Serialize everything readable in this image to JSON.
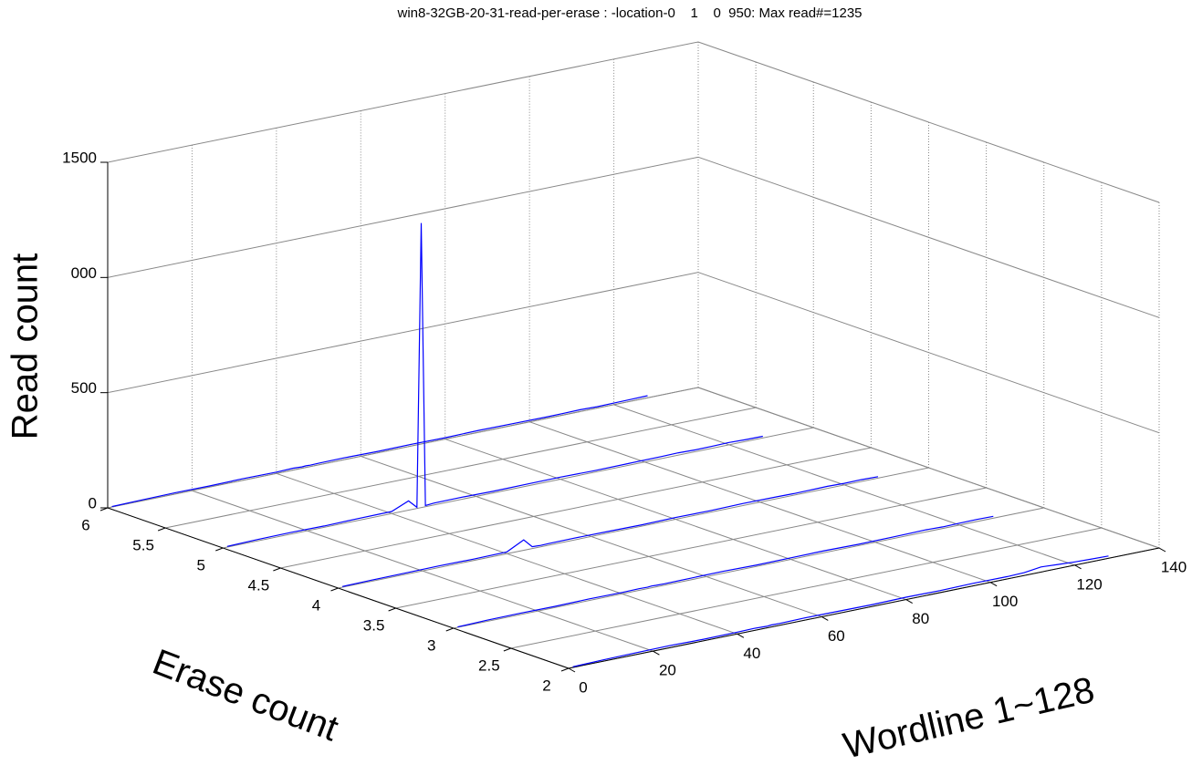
{
  "chart_data": {
    "type": "line3d",
    "title": "win8-32GB-20-31-read-per-erase : -location-0    1    0  950: Max read#=1235",
    "xlabel": "Wordline 1~128",
    "ylabel": "Erase count",
    "zlabel": "Read count",
    "x": [
      1,
      8,
      16,
      24,
      32,
      40,
      44,
      46,
      47,
      48,
      50,
      56,
      64,
      72,
      80,
      88,
      96,
      104,
      108,
      112,
      116,
      120,
      124,
      128
    ],
    "series": [
      {
        "y": 6,
        "color": "#0000ff",
        "values": [
          2,
          4,
          6,
          5,
          7,
          6,
          8,
          6,
          7,
          6,
          7,
          8,
          6,
          7,
          6,
          8,
          7,
          6,
          7,
          8,
          6,
          7,
          8,
          9
        ]
      },
      {
        "y": 5,
        "color": "#0000ff",
        "values": [
          3,
          6,
          7,
          6,
          8,
          9,
          40,
          5,
          1235,
          5,
          8,
          9,
          7,
          8,
          9,
          7,
          8,
          9,
          10,
          8,
          9,
          10,
          8,
          7
        ]
      },
      {
        "y": 4,
        "color": "#0000ff",
        "values": [
          3,
          5,
          6,
          7,
          6,
          8,
          45,
          8,
          7,
          6,
          7,
          8,
          7,
          6,
          8,
          7,
          9,
          8,
          7,
          8,
          9,
          7,
          8,
          6
        ]
      },
      {
        "y": 3,
        "color": "#0000ff",
        "values": [
          2,
          5,
          6,
          5,
          7,
          6,
          7,
          6,
          8,
          7,
          6,
          7,
          8,
          6,
          7,
          8,
          6,
          7,
          8,
          9,
          7,
          8,
          9,
          8
        ]
      },
      {
        "y": 2,
        "color": "#0000ff",
        "values": [
          3,
          6,
          8,
          9,
          7,
          8,
          9,
          8,
          7,
          9,
          8,
          10,
          9,
          8,
          10,
          9,
          11,
          10,
          12,
          22,
          18,
          14,
          12,
          10
        ]
      }
    ],
    "xlim": [
      0,
      140
    ],
    "xticks": [
      0,
      20,
      40,
      60,
      80,
      100,
      120,
      140
    ],
    "ylim": [
      2,
      6
    ],
    "yticks": [
      2,
      2.5,
      3,
      3.5,
      4,
      4.5,
      5,
      5.5,
      6
    ],
    "zlim": [
      0,
      1500
    ],
    "zticks": [
      0,
      500,
      {
        "value": 1000,
        "label": "000"
      },
      1500
    ],
    "grid": true
  }
}
